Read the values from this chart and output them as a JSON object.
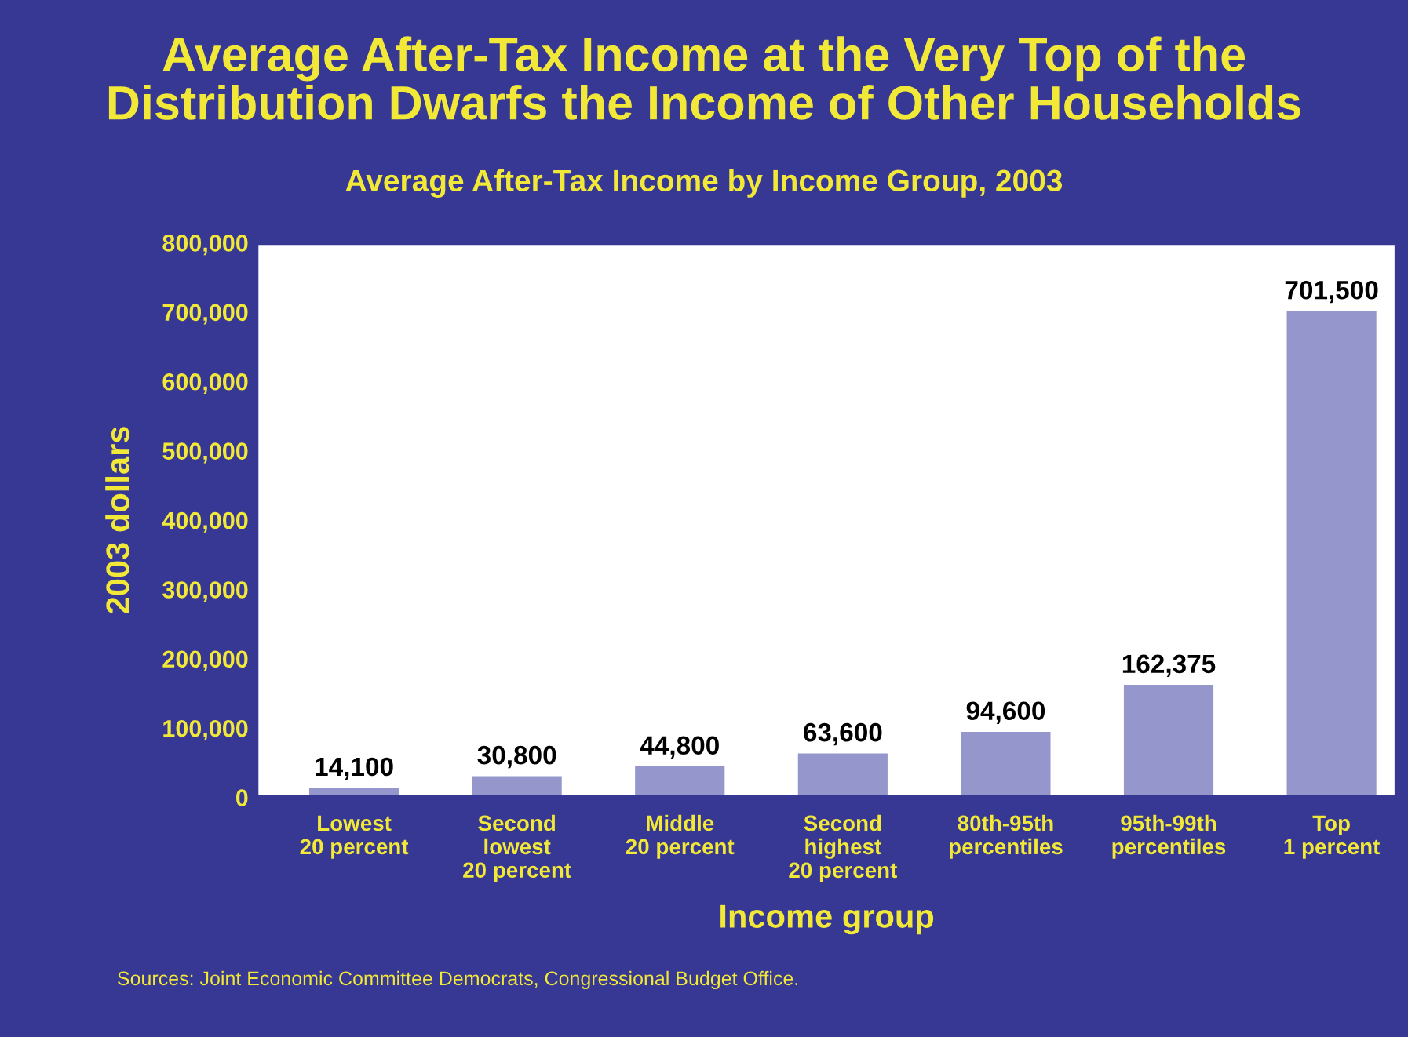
{
  "chart_data": {
    "type": "bar",
    "title": "Average After-Tax Income at the Very Top of the\nDistribution Dwarfs the Income of Other Households",
    "subtitle": "Average After-Tax Income by Income Group, 2003",
    "xlabel": "Income group",
    "ylabel": "2003 dollars",
    "categories": [
      "Lowest\n20 percent",
      "Second\nlowest\n20 percent",
      "Middle\n20 percent",
      "Second\nhighest\n20 percent",
      "80th-95th\npercentiles",
      "95th-99th\npercentiles",
      "Top\n1 percent"
    ],
    "values": [
      14100,
      30800,
      44800,
      63600,
      94600,
      162375,
      701500
    ],
    "value_labels": [
      "14,100",
      "30,800",
      "44,800",
      "63,600",
      "94,600",
      "162,375",
      "701,500"
    ],
    "color": "#9597cc",
    "ylim": [
      0,
      800000
    ],
    "yticks": [
      {
        "value": 0,
        "label": "0"
      },
      {
        "value": 100000,
        "label": "100,000"
      },
      {
        "value": 200000,
        "label": "200,000"
      },
      {
        "value": 300000,
        "label": "300,000"
      },
      {
        "value": 400000,
        "label": "400,000"
      },
      {
        "value": 500000,
        "label": "500,000"
      },
      {
        "value": 600000,
        "label": "600,000"
      },
      {
        "value": 700000,
        "label": "700,000"
      },
      {
        "value": 800000,
        "label": "800,000"
      }
    ],
    "grid": false,
    "annotations": [
      "Sources: Joint Economic Committee Democrats, Congressional Budget Office."
    ]
  }
}
